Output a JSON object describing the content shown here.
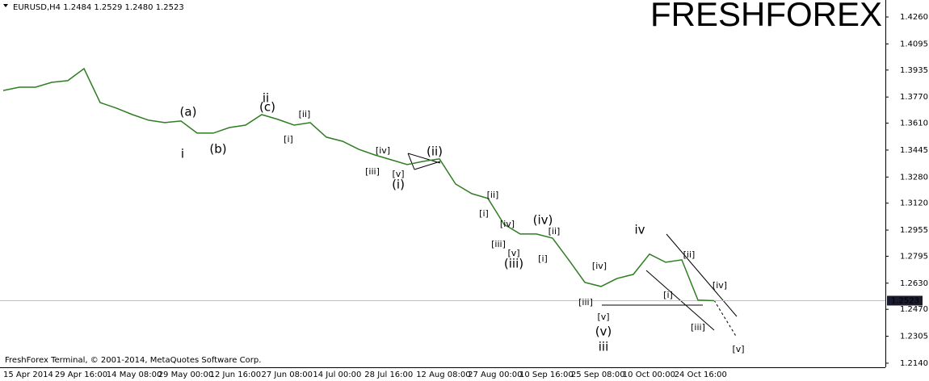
{
  "chart_data": {
    "type": "line",
    "title": "EURUSD,H4  1.2484 1.2529 1.2480 1.2523",
    "watermark": "FRESHFOREX",
    "watermark_color": "#3ec41c",
    "footer": "FreshForex Terminal, © 2001-2014, MetaQuotes Software Corp.",
    "xticks": [
      "15 Apr 2014",
      "29 Apr 16:00",
      "14 May 08:00",
      "29 May 00:00",
      "12 Jun 16:00",
      "27 Jun 08:00",
      "14 Jul 00:00",
      "28 Jul 16:00",
      "12 Aug 08:00",
      "27 Aug 00:00",
      "10 Sep 16:00",
      "25 Sep 08:00",
      "10 Oct 00:00",
      "24 Oct 16:00"
    ],
    "ylim": [
      1.2115,
      1.4364
    ],
    "yticks": [
      {
        "value": 1.426,
        "label": "1.4260"
      },
      1.4095,
      1.3935,
      {
        "value": 1.377,
        "label": "1.3770"
      },
      {
        "value": 1.361,
        "label": "1.3610"
      },
      1.3445,
      {
        "value": 1.328,
        "label": "1.3280"
      },
      {
        "value": 1.312,
        "label": "1.3120"
      },
      1.2955,
      1.2795,
      {
        "value": 1.263,
        "label": "1.2630"
      },
      {
        "value": 1.247,
        "label": "1.2470"
      },
      1.2305,
      {
        "value": 1.214,
        "label": "1.2140"
      }
    ],
    "color": "#2f7d22",
    "values": [
      1.381,
      1.383,
      1.383,
      1.386,
      1.387,
      1.3944,
      1.3736,
      1.3702,
      1.3662,
      1.3628,
      1.3613,
      1.3623,
      1.3549,
      1.3549,
      1.3583,
      1.3598,
      1.3662,
      1.3633,
      1.3598,
      1.3613,
      1.3524,
      1.3499,
      1.345,
      1.3415,
      1.3386,
      1.3356,
      1.3376,
      1.3391,
      1.3237,
      1.3178,
      1.3149,
      1.299,
      1.2931,
      1.2931,
      1.2906,
      1.2773,
      1.2635,
      1.261,
      1.2659,
      1.2684,
      1.2808,
      1.2758,
      1.2773,
      1.2526,
      1.2523
    ],
    "last_price": 1.2523,
    "annotations": [
      {
        "text": "i",
        "color": "#d42020"
      },
      {
        "text": "(a)",
        "color": "#2020c8"
      },
      {
        "text": "(b)",
        "color": "#2020c8"
      },
      {
        "text": "ii",
        "color": "#d42020"
      },
      {
        "text": "(c)",
        "color": "#2020c8"
      },
      {
        "text": "[ii]",
        "color": "#44b02c"
      },
      {
        "text": "[i]",
        "color": "#44b02c"
      },
      {
        "text": "[iv]",
        "color": "#44b02c"
      },
      {
        "text": "[iii]",
        "color": "#44b02c"
      },
      {
        "text": "[v]",
        "color": "#44b02c"
      },
      {
        "text": "(i)",
        "color": "#2020c8"
      },
      {
        "text": "(ii)",
        "color": "#2020c8"
      },
      {
        "text": "[ii]",
        "color": "#44b02c"
      },
      {
        "text": "[i]",
        "color": "#44b02c"
      },
      {
        "text": "[iv]",
        "color": "#44b02c"
      },
      {
        "text": "[iii]",
        "color": "#44b02c"
      },
      {
        "text": "[v]",
        "color": "#44b02c"
      },
      {
        "text": "(iii)",
        "color": "#2020c8"
      },
      {
        "text": "(iv)",
        "color": "#2020c8"
      },
      {
        "text": "[ii]",
        "color": "#44b02c"
      },
      {
        "text": "[i]",
        "color": "#44b02c"
      },
      {
        "text": "[iv]",
        "color": "#44b02c"
      },
      {
        "text": "[iii]",
        "color": "#44b02c"
      },
      {
        "text": "[v]",
        "color": "#44b02c"
      },
      {
        "text": "(v)",
        "color": "#2020c8"
      },
      {
        "text": "iii",
        "color": "#d42020"
      },
      {
        "text": "iv",
        "color": "#d42020"
      },
      {
        "text": "[ii]",
        "color": "#44b02c"
      },
      {
        "text": "[i]",
        "color": "#44b02c"
      },
      {
        "text": "[iv]",
        "color": "#44b02c"
      },
      {
        "text": "[iii]",
        "color": "#44b02c"
      },
      {
        "text": "[v]",
        "color": "#44b02c"
      }
    ]
  }
}
